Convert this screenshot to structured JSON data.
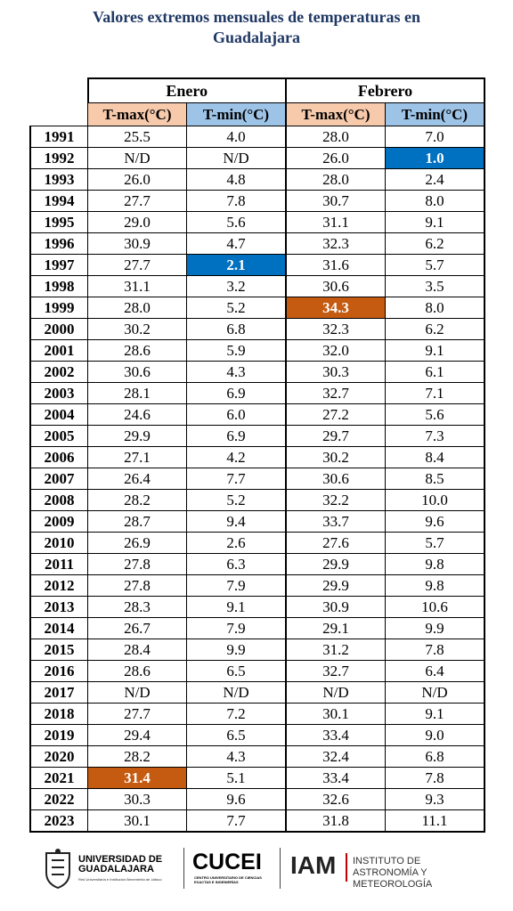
{
  "title": "Valores extremos mensuales de temperaturas en Guadalajara",
  "table": {
    "months": [
      "Enero",
      "Febrero"
    ],
    "columns": [
      "T-max(°C)",
      "T-min(°C)",
      "T-max(°C)",
      "T-min(°C)"
    ],
    "rows": [
      [
        "1991",
        "25.5",
        "4.0",
        "28.0",
        "7.0"
      ],
      [
        "1992",
        "N/D",
        "N/D",
        "26.0",
        "1.0"
      ],
      [
        "1993",
        "26.0",
        "4.8",
        "28.0",
        "2.4"
      ],
      [
        "1994",
        "27.7",
        "7.8",
        "30.7",
        "8.0"
      ],
      [
        "1995",
        "29.0",
        "5.6",
        "31.1",
        "9.1"
      ],
      [
        "1996",
        "30.9",
        "4.7",
        "32.3",
        "6.2"
      ],
      [
        "1997",
        "27.7",
        "2.1",
        "31.6",
        "5.7"
      ],
      [
        "1998",
        "31.1",
        "3.2",
        "30.6",
        "3.5"
      ],
      [
        "1999",
        "28.0",
        "5.2",
        "34.3",
        "8.0"
      ],
      [
        "2000",
        "30.2",
        "6.8",
        "32.3",
        "6.2"
      ],
      [
        "2001",
        "28.6",
        "5.9",
        "32.0",
        "9.1"
      ],
      [
        "2002",
        "30.6",
        "4.3",
        "30.3",
        "6.1"
      ],
      [
        "2003",
        "28.1",
        "6.9",
        "32.7",
        "7.1"
      ],
      [
        "2004",
        "24.6",
        "6.0",
        "27.2",
        "5.6"
      ],
      [
        "2005",
        "29.9",
        "6.9",
        "29.7",
        "7.3"
      ],
      [
        "2006",
        "27.1",
        "4.2",
        "30.2",
        "8.4"
      ],
      [
        "2007",
        "26.4",
        "7.7",
        "30.6",
        "8.5"
      ],
      [
        "2008",
        "28.2",
        "5.2",
        "32.2",
        "10.0"
      ],
      [
        "2009",
        "28.7",
        "9.4",
        "33.7",
        "9.6"
      ],
      [
        "2010",
        "26.9",
        "2.6",
        "27.6",
        "5.7"
      ],
      [
        "2011",
        "27.8",
        "6.3",
        "29.9",
        "9.8"
      ],
      [
        "2012",
        "27.8",
        "7.9",
        "29.9",
        "9.8"
      ],
      [
        "2013",
        "28.3",
        "9.1",
        "30.9",
        "10.6"
      ],
      [
        "2014",
        "26.7",
        "7.9",
        "29.1",
        "9.9"
      ],
      [
        "2015",
        "28.4",
        "9.9",
        "31.2",
        "7.8"
      ],
      [
        "2016",
        "28.6",
        "6.5",
        "32.7",
        "6.4"
      ],
      [
        "2017",
        "N/D",
        "N/D",
        "N/D",
        "N/D"
      ],
      [
        "2018",
        "27.7",
        "7.2",
        "30.1",
        "9.1"
      ],
      [
        "2019",
        "29.4",
        "6.5",
        "33.4",
        "9.0"
      ],
      [
        "2020",
        "28.2",
        "4.3",
        "32.4",
        "6.8"
      ],
      [
        "2021",
        "31.4",
        "5.1",
        "33.4",
        "7.8"
      ],
      [
        "2022",
        "30.3",
        "9.6",
        "32.6",
        "9.3"
      ],
      [
        "2023",
        "30.1",
        "7.7",
        "31.8",
        "11.1"
      ]
    ]
  },
  "footer": {
    "udg": "UNIVERSIDAD DE GUADALAJARA",
    "udg_sub": "Red Universitaria e Institución Benemérita de Jalisco",
    "cucei": "CUCEI",
    "cucei_sub": "CENTRO UNIVERSITARIO DE CIENCIAS EXACTAS E INGENIERÍAS",
    "iam": "IAM",
    "iam_sub": "INSTITUTO DE ASTRONOMÍA Y METEOROLOGÍA"
  }
}
